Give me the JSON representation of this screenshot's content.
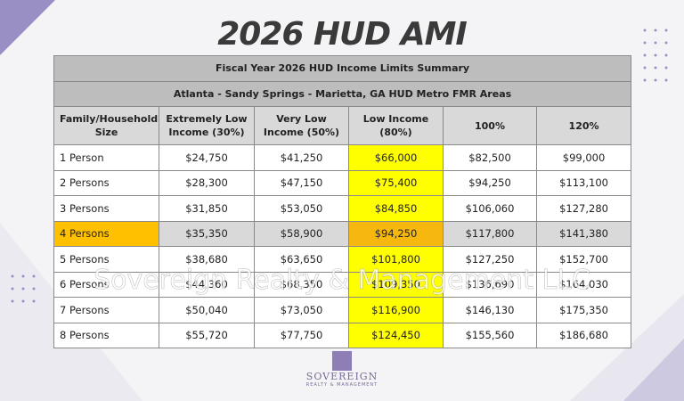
{
  "header": {
    "title": "2026 HUD AMI"
  },
  "table": {
    "caption": "Fiscal Year 2026 HUD Income Limits Summary",
    "subcaption": "Atlanta - Sandy Springs - Marietta, GA HUD Metro FMR Areas",
    "columns": [
      "Family/Household Size",
      "Extremely Low Income (30%)",
      "Very Low Income (50%)",
      "Low Income (80%)",
      "100%",
      "120%"
    ],
    "rows": [
      [
        "1 Person",
        "$24,750",
        "$41,250",
        "$66,000",
        "$82,500",
        "$99,000"
      ],
      [
        "2 Persons",
        "$28,300",
        "$47,150",
        "$75,400",
        "$94,250",
        "$113,100"
      ],
      [
        "3 Persons",
        "$31,850",
        "$53,050",
        "$84,850",
        "$106,060",
        "$127,280"
      ],
      [
        "4 Persons",
        "$35,350",
        "$58,900",
        "$94,250",
        "$117,800",
        "$141,380"
      ],
      [
        "5 Persons",
        "$38,680",
        "$63,650",
        "$101,800",
        "$127,250",
        "$152,700"
      ],
      [
        "6 Persons",
        "$44,360",
        "$68,350",
        "$109,350",
        "$136,690",
        "$164,030"
      ],
      [
        "7 Persons",
        "$50,040",
        "$73,050",
        "$116,900",
        "$146,130",
        "$175,350"
      ],
      [
        "8 Persons",
        "$55,720",
        "$77,750",
        "$124,450",
        "$155,560",
        "$186,680"
      ]
    ]
  },
  "watermark": "Sovereign Realty & Management LLC",
  "logo": {
    "name": "SOVEREIGN",
    "tagline": "REALTY & MANAGEMENT"
  }
}
